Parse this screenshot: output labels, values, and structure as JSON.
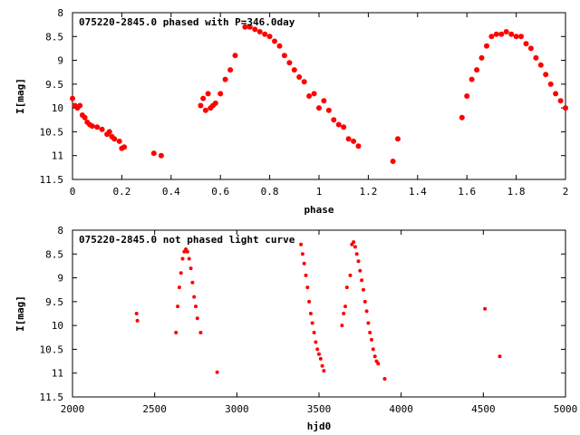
{
  "chart_data": [
    {
      "type": "scatter",
      "title": "075220-2845.0 phased with P=346.0day",
      "xlabel": "phase",
      "ylabel": "I[mag]",
      "xlim": [
        0,
        2
      ],
      "ylim": [
        11.5,
        8
      ],
      "y_inverted": true,
      "xticks": [
        "0",
        "0.2",
        "0.4",
        "0.6",
        "0.8",
        "1",
        "1.2",
        "1.4",
        "1.6",
        "1.8",
        "2"
      ],
      "yticks": [
        "8",
        "8.5",
        "9",
        "9.5",
        "10",
        "10.5",
        "11",
        "11.5"
      ],
      "grid": false,
      "legend": "none",
      "marker_color": "#ff0000",
      "series": [
        {
          "x": [
            0.0,
            0.01,
            0.02,
            0.03,
            0.04,
            0.05,
            0.06,
            0.07,
            0.08,
            0.1,
            0.12,
            0.14,
            0.15,
            0.16,
            0.17,
            0.19,
            0.2,
            0.21,
            0.33,
            0.36,
            0.52,
            0.53,
            0.54,
            0.55,
            0.56,
            0.57,
            0.58,
            0.6,
            0.62,
            0.64,
            0.66,
            0.7,
            0.72,
            0.74,
            0.76,
            0.78,
            0.8,
            0.82,
            0.84,
            0.86,
            0.88,
            0.9,
            0.92,
            0.94,
            0.96,
            0.98,
            1.0,
            1.02,
            1.04,
            1.06,
            1.08,
            1.1,
            1.12,
            1.14,
            1.16,
            1.3,
            1.32,
            1.58,
            1.6,
            1.62,
            1.64,
            1.66,
            1.68,
            1.7,
            1.72,
            1.74,
            1.76,
            1.78,
            1.8,
            1.82,
            1.84,
            1.86,
            1.88,
            1.9,
            1.92,
            1.94,
            1.96,
            1.98,
            2.0
          ],
          "y": [
            9.8,
            9.95,
            10.0,
            9.95,
            10.15,
            10.2,
            10.3,
            10.35,
            10.38,
            10.4,
            10.45,
            10.55,
            10.5,
            10.6,
            10.65,
            10.7,
            10.85,
            10.82,
            10.95,
            11.0,
            9.95,
            9.8,
            10.05,
            9.7,
            10.0,
            9.95,
            9.9,
            9.7,
            9.4,
            9.2,
            8.9,
            8.3,
            8.3,
            8.35,
            8.4,
            8.45,
            8.5,
            8.6,
            8.7,
            8.9,
            9.05,
            9.2,
            9.35,
            9.45,
            9.75,
            9.7,
            10.0,
            9.85,
            10.05,
            10.25,
            10.35,
            10.4,
            10.65,
            10.7,
            10.8,
            11.12,
            10.65,
            10.2,
            9.75,
            9.4,
            9.2,
            8.95,
            8.7,
            8.5,
            8.45,
            8.45,
            8.4,
            8.45,
            8.5,
            8.5,
            8.65,
            8.75,
            8.95,
            9.1,
            9.3,
            9.5,
            9.7,
            9.85,
            10.0
          ]
        }
      ]
    },
    {
      "type": "scatter",
      "title": "075220-2845.0 not phased light curve",
      "xlabel": "hjd0",
      "ylabel": "I[mag]",
      "xlim": [
        2000,
        5000
      ],
      "ylim": [
        11.5,
        8
      ],
      "y_inverted": true,
      "xticks": [
        "2000",
        "2500",
        "3000",
        "3500",
        "4000",
        "4500",
        "5000"
      ],
      "yticks": [
        "8",
        "8.5",
        "9",
        "9.5",
        "10",
        "10.5",
        "11",
        "11.5"
      ],
      "grid": false,
      "legend": "none",
      "marker_color": "#ff0000",
      "series": [
        {
          "x": [
            2390,
            2395,
            2630,
            2640,
            2650,
            2660,
            2670,
            2680,
            2690,
            2700,
            2710,
            2720,
            2730,
            2740,
            2750,
            2760,
            2780,
            2880,
            3390,
            3400,
            3410,
            3420,
            3430,
            3440,
            3450,
            3460,
            3470,
            3480,
            3490,
            3500,
            3510,
            3520,
            3530,
            3640,
            3650,
            3660,
            3670,
            3690,
            3700,
            3710,
            3720,
            3730,
            3740,
            3750,
            3760,
            3770,
            3780,
            3790,
            3800,
            3810,
            3820,
            3830,
            3840,
            3850,
            3860,
            3900,
            4510,
            4600
          ],
          "y": [
            9.75,
            9.9,
            10.15,
            9.6,
            9.2,
            8.9,
            8.6,
            8.45,
            8.4,
            8.45,
            8.6,
            8.8,
            9.1,
            9.4,
            9.6,
            9.85,
            10.15,
            10.98,
            8.3,
            8.5,
            8.7,
            8.95,
            9.2,
            9.5,
            9.75,
            9.95,
            10.15,
            10.35,
            10.5,
            10.6,
            10.7,
            10.85,
            10.95,
            10.0,
            9.75,
            9.6,
            9.2,
            8.95,
            8.3,
            8.25,
            8.35,
            8.5,
            8.65,
            8.85,
            9.05,
            9.25,
            9.5,
            9.7,
            9.95,
            10.15,
            10.3,
            10.5,
            10.65,
            10.75,
            10.8,
            11.12,
            9.65,
            10.65
          ]
        }
      ]
    }
  ]
}
